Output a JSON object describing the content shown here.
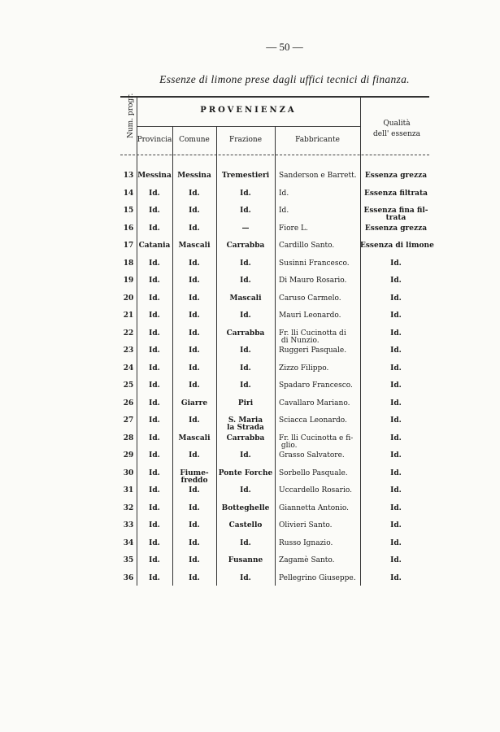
{
  "page_number": "— 50 —",
  "caption": "Essenze di limone prese dagli uffici tecnici di finanza.",
  "table": {
    "headers": {
      "num": "Num. progr.",
      "group": "PROVENIENZA",
      "provincia": "Provincia",
      "comune": "Comune",
      "frazione": "Frazione",
      "fabbricante": "Fabbricante",
      "qualita_line1": "Qualità",
      "qualita_line2": "dell' essenza"
    },
    "rows": [
      {
        "num": "13",
        "provincia": "Messina",
        "comune": "Messina",
        "frazione": "Tremestieri",
        "fabbricante": "Sanderson e Barrett.",
        "qualita": "Essenza grezza"
      },
      {
        "num": "14",
        "provincia": "Id.",
        "comune": "Id.",
        "frazione": "Id.",
        "fabbricante": "Id.",
        "qualita": "Essenza filtrata"
      },
      {
        "num": "15",
        "provincia": "Id.",
        "comune": "Id.",
        "frazione": "Id.",
        "fabbricante": "Id.",
        "qualita": "Essenza fina fil-\ntrata"
      },
      {
        "num": "16",
        "provincia": "Id.",
        "comune": "Id.",
        "frazione": "—",
        "fabbricante": "Fiore L.",
        "qualita": "Essenza grezza"
      },
      {
        "num": "17",
        "provincia": "Catania",
        "comune": "Mascali",
        "frazione": "Carrabba",
        "fabbricante": "Cardillo Santo.",
        "qualita": "Essenza di limone"
      },
      {
        "num": "18",
        "provincia": "Id.",
        "comune": "Id.",
        "frazione": "Id.",
        "fabbricante": "Susinni Francesco.",
        "qualita": "Id."
      },
      {
        "num": "19",
        "provincia": "Id.",
        "comune": "Id.",
        "frazione": "Id.",
        "fabbricante": "Di Mauro Rosario.",
        "qualita": "Id."
      },
      {
        "num": "20",
        "provincia": "Id.",
        "comune": "Id.",
        "frazione": "Mascali",
        "fabbricante": "Caruso Carmelo.",
        "qualita": "Id."
      },
      {
        "num": "21",
        "provincia": "Id.",
        "comune": "Id.",
        "frazione": "Id.",
        "fabbricante": "Mauri Leonardo.",
        "qualita": "Id."
      },
      {
        "num": "22",
        "provincia": "Id.",
        "comune": "Id.",
        "frazione": "Carrabba",
        "fabbricante": "Fr. lli Cucinotta di\n di Nunzio.",
        "qualita": "Id."
      },
      {
        "num": "23",
        "provincia": "Id.",
        "comune": "Id.",
        "frazione": "Id.",
        "fabbricante": "Ruggeri Pasquale.",
        "qualita": "Id."
      },
      {
        "num": "24",
        "provincia": "Id.",
        "comune": "Id.",
        "frazione": "Id.",
        "fabbricante": "Zizzo Filippo.",
        "qualita": "Id."
      },
      {
        "num": "25",
        "provincia": "Id.",
        "comune": "Id.",
        "frazione": "Id.",
        "fabbricante": "Spadaro Francesco.",
        "qualita": "Id."
      },
      {
        "num": "26",
        "provincia": "Id.",
        "comune": "Giarre",
        "frazione": "Piri",
        "fabbricante": "Cavallaro Mariano.",
        "qualita": "Id."
      },
      {
        "num": "27",
        "provincia": "Id.",
        "comune": "Id.",
        "frazione": "S. Maria\nla Strada",
        "fabbricante": "Sciacca Leonardo.",
        "qualita": "Id."
      },
      {
        "num": "28",
        "provincia": "Id.",
        "comune": "Mascali",
        "frazione": "Carrabba",
        "fabbricante": "Fr. lli Cucinotta e fi-\n glio.",
        "qualita": "Id."
      },
      {
        "num": "29",
        "provincia": "Id.",
        "comune": "Id.",
        "frazione": "Id.",
        "fabbricante": "Grasso Salvatore.",
        "qualita": "Id."
      },
      {
        "num": "30",
        "provincia": "Id.",
        "comune": "Fiume-\nfreddo",
        "frazione": "Ponte Forche",
        "fabbricante": "Sorbello Pasquale.",
        "qualita": "Id."
      },
      {
        "num": "31",
        "provincia": "Id.",
        "comune": "Id.",
        "frazione": "Id.",
        "fabbricante": "Uccardello Rosario.",
        "qualita": "Id."
      },
      {
        "num": "32",
        "provincia": "Id.",
        "comune": "Id.",
        "frazione": "Botteghelle",
        "fabbricante": "Giannetta Antonio.",
        "qualita": "Id."
      },
      {
        "num": "33",
        "provincia": "Id.",
        "comune": "Id.",
        "frazione": "Castello",
        "fabbricante": "Olivieri Santo.",
        "qualita": "Id."
      },
      {
        "num": "34",
        "provincia": "Id.",
        "comune": "Id.",
        "frazione": "Id.",
        "fabbricante": "Russo Ignazio.",
        "qualita": "Id."
      },
      {
        "num": "35",
        "provincia": "Id.",
        "comune": "Id.",
        "frazione": "Fusanne",
        "fabbricante": "Zagamè Santo.",
        "qualita": "Id."
      },
      {
        "num": "36",
        "provincia": "Id.",
        "comune": "Id.",
        "frazione": "Id.",
        "fabbricante": "Pellegrino Giuseppe.",
        "qualita": "Id."
      }
    ]
  }
}
